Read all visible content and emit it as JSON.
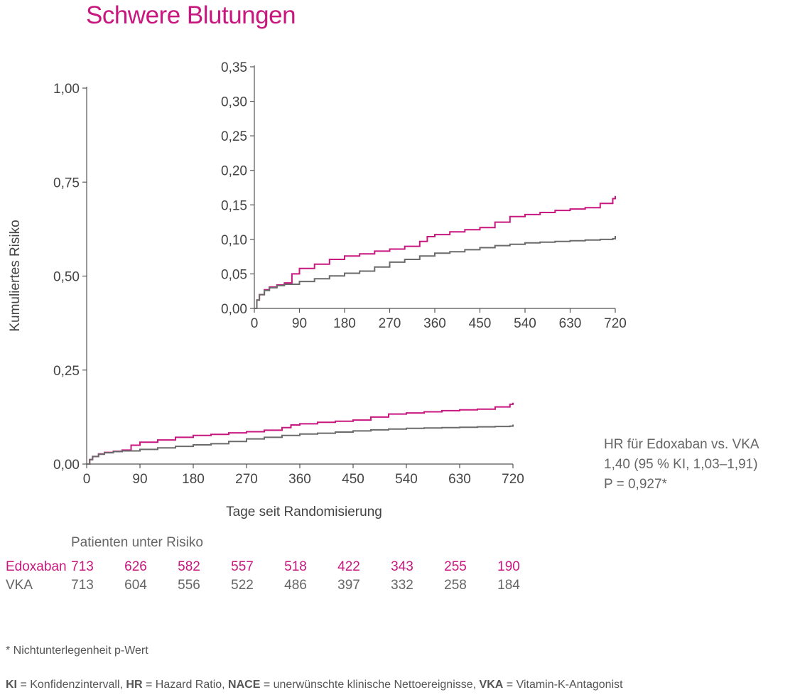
{
  "title": "Schwere Blutungen",
  "colors": {
    "edoxaban": "#c8177f",
    "vka": "#6b6b6b",
    "axis": "#555555"
  },
  "chart_data": [
    {
      "type": "line",
      "ylabel": "Kumuliertes Risiko",
      "xlabel": "Tage seit Randomisierung",
      "xlim": [
        0,
        720
      ],
      "ylim": [
        0,
        1.0
      ],
      "x_ticks": [
        "0",
        "90",
        "180",
        "270",
        "360",
        "450",
        "540",
        "630",
        "720"
      ],
      "y_ticks": [
        "0,00",
        "0,25",
        "0,50",
        "0,75",
        "1,00"
      ],
      "series": [
        {
          "name": "Edoxaban",
          "color": "#c8177f",
          "x": [
            0,
            5,
            10,
            20,
            30,
            45,
            60,
            75,
            90,
            120,
            150,
            180,
            210,
            240,
            270,
            300,
            330,
            345,
            360,
            390,
            420,
            450,
            480,
            510,
            540,
            570,
            600,
            630,
            660,
            690,
            715,
            720
          ],
          "y": [
            0,
            0.012,
            0.02,
            0.027,
            0.031,
            0.034,
            0.037,
            0.05,
            0.058,
            0.064,
            0.071,
            0.076,
            0.079,
            0.083,
            0.086,
            0.09,
            0.097,
            0.104,
            0.107,
            0.111,
            0.114,
            0.117,
            0.125,
            0.133,
            0.136,
            0.139,
            0.142,
            0.144,
            0.146,
            0.152,
            0.159,
            0.163
          ]
        },
        {
          "name": "VKA",
          "color": "#6b6b6b",
          "x": [
            0,
            5,
            10,
            20,
            30,
            45,
            60,
            90,
            120,
            150,
            180,
            210,
            240,
            270,
            300,
            330,
            360,
            390,
            420,
            450,
            480,
            510,
            540,
            570,
            600,
            630,
            660,
            690,
            715,
            720
          ],
          "y": [
            0,
            0.012,
            0.02,
            0.026,
            0.03,
            0.033,
            0.035,
            0.039,
            0.043,
            0.047,
            0.051,
            0.054,
            0.06,
            0.067,
            0.071,
            0.076,
            0.08,
            0.082,
            0.085,
            0.088,
            0.091,
            0.093,
            0.095,
            0.096,
            0.097,
            0.098,
            0.099,
            0.1,
            0.101,
            0.105
          ]
        }
      ]
    },
    {
      "type": "line",
      "xlim": [
        0,
        720
      ],
      "ylim": [
        0,
        0.35
      ],
      "x_ticks": [
        "0",
        "90",
        "180",
        "270",
        "360",
        "450",
        "540",
        "630",
        "720"
      ],
      "y_ticks": [
        "0,00",
        "0,05",
        "0,10",
        "0,15",
        "0,20",
        "0,25",
        "0,30",
        "0,35"
      ],
      "series": [
        {
          "name": "Edoxaban",
          "color": "#c8177f",
          "x": [
            0,
            5,
            10,
            20,
            30,
            45,
            60,
            75,
            90,
            120,
            150,
            180,
            210,
            240,
            270,
            300,
            330,
            345,
            360,
            390,
            420,
            450,
            480,
            510,
            540,
            570,
            600,
            630,
            660,
            690,
            715,
            720
          ],
          "y": [
            0,
            0.012,
            0.02,
            0.027,
            0.031,
            0.034,
            0.037,
            0.05,
            0.058,
            0.064,
            0.071,
            0.076,
            0.079,
            0.083,
            0.086,
            0.09,
            0.097,
            0.104,
            0.107,
            0.111,
            0.114,
            0.117,
            0.125,
            0.133,
            0.136,
            0.139,
            0.142,
            0.144,
            0.146,
            0.152,
            0.159,
            0.163
          ]
        },
        {
          "name": "VKA",
          "color": "#6b6b6b",
          "x": [
            0,
            5,
            10,
            20,
            30,
            45,
            60,
            90,
            120,
            150,
            180,
            210,
            240,
            270,
            300,
            330,
            360,
            390,
            420,
            450,
            480,
            510,
            540,
            570,
            600,
            630,
            660,
            690,
            715,
            720
          ],
          "y": [
            0,
            0.012,
            0.02,
            0.026,
            0.03,
            0.033,
            0.035,
            0.039,
            0.043,
            0.047,
            0.051,
            0.054,
            0.06,
            0.067,
            0.071,
            0.076,
            0.08,
            0.082,
            0.085,
            0.088,
            0.091,
            0.093,
            0.095,
            0.096,
            0.097,
            0.098,
            0.099,
            0.1,
            0.101,
            0.105
          ]
        }
      ]
    }
  ],
  "hr_box": {
    "line1": "HR für Edoxaban vs. VKA",
    "line2": "1,40 (95 % KI, 1,03–1,91)",
    "line3": "P = 0,927*"
  },
  "risk_table": {
    "title": "Patienten unter Risiko",
    "rows": [
      {
        "label": "Edoxaban",
        "values": [
          "713",
          "626",
          "582",
          "557",
          "518",
          "422",
          "343",
          "255",
          "190"
        ]
      },
      {
        "label": "VKA",
        "values": [
          "713",
          "604",
          "556",
          "522",
          "486",
          "397",
          "332",
          "258",
          "184"
        ]
      }
    ]
  },
  "footnote": "* Nichtunterlegenheit p-Wert",
  "abbreviations": [
    {
      "abbr": "KI",
      "text": " = Konfidenzintervall, "
    },
    {
      "abbr": "HR",
      "text": " = Hazard Ratio, "
    },
    {
      "abbr": "NACE",
      "text": " = unerwünschte klinische Nettoereignisse, "
    },
    {
      "abbr": "VKA",
      "text": " = Vitamin-K-Antagonist"
    }
  ]
}
